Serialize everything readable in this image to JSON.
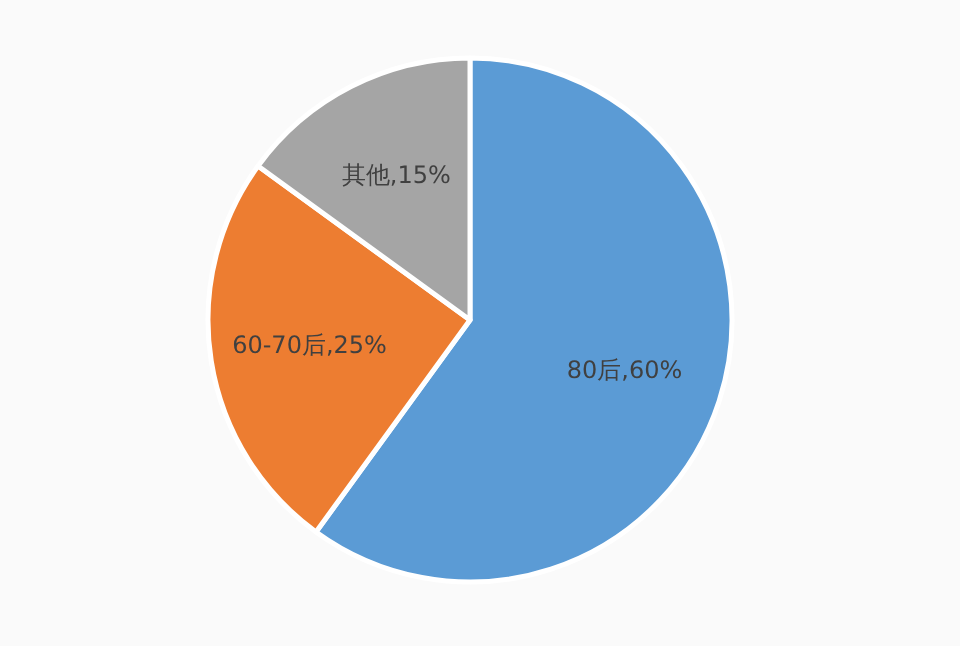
{
  "chart_data": {
    "type": "pie",
    "categories": [
      "80后",
      "60-70后",
      "其他"
    ],
    "values": [
      60,
      25,
      15
    ],
    "colors": [
      "#5b9bd5",
      "#ed7d31",
      "#a5a5a5"
    ],
    "value_labels": [
      ",60%",
      ",25%",
      ",15%"
    ],
    "legend": false
  }
}
